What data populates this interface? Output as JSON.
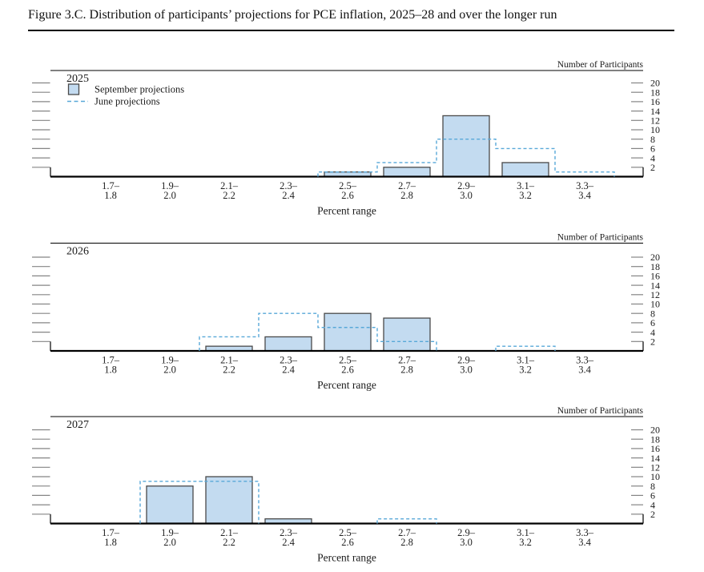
{
  "title": "Figure 3.C. Distribution of participants’ projections for PCE inflation, 2025–28 and over the longer run",
  "colors": {
    "bar_fill": "#c3dbf0",
    "bar_stroke": "#4a4a4a",
    "june": "#58a8d8",
    "axis": "#000000",
    "tick": "#858585",
    "text": "#1a1a1a"
  },
  "legend": {
    "september_label": "September projections",
    "june_label": "June projections"
  },
  "chart_data": [
    {
      "type": "bar",
      "title": "2025",
      "categories": [
        "1.7–1.8",
        "1.9–2.0",
        "2.1–2.2",
        "2.3–2.4",
        "2.5–2.6",
        "2.7–2.8",
        "2.9–3.0",
        "3.1–3.2",
        "3.3–3.4"
      ],
      "series": [
        {
          "name": "September projections",
          "style": "bar",
          "values": [
            0,
            0,
            0,
            0,
            1,
            2,
            13,
            3,
            0
          ]
        },
        {
          "name": "June projections",
          "style": "dashed-step",
          "values": [
            0,
            0,
            0,
            0,
            1,
            3,
            8,
            6,
            1
          ]
        }
      ],
      "xlabel": "Percent range",
      "ylabel": "Number of Participants",
      "ylim": [
        0,
        20
      ],
      "yticks": [
        2,
        4,
        6,
        8,
        10,
        12,
        14,
        16,
        18,
        20
      ],
      "legend_visible": true
    },
    {
      "type": "bar",
      "title": "2026",
      "categories": [
        "1.7–1.8",
        "1.9–2.0",
        "2.1–2.2",
        "2.3–2.4",
        "2.5–2.6",
        "2.7–2.8",
        "2.9–3.0",
        "3.1–3.2",
        "3.3–3.4"
      ],
      "series": [
        {
          "name": "September projections",
          "style": "bar",
          "values": [
            0,
            0,
            1,
            3,
            8,
            7,
            0,
            0,
            0
          ]
        },
        {
          "name": "June projections",
          "style": "dashed-step",
          "values": [
            0,
            0,
            3,
            8,
            5,
            2,
            0,
            1,
            0
          ]
        }
      ],
      "xlabel": "Percent range",
      "ylabel": "Number of Participants",
      "ylim": [
        0,
        20
      ],
      "yticks": [
        2,
        4,
        6,
        8,
        10,
        12,
        14,
        16,
        18,
        20
      ],
      "legend_visible": false
    },
    {
      "type": "bar",
      "title": "2027",
      "categories": [
        "1.7–1.8",
        "1.9–2.0",
        "2.1–2.2",
        "2.3–2.4",
        "2.5–2.6",
        "2.7–2.8",
        "2.9–3.0",
        "3.1–3.2",
        "3.3–3.4"
      ],
      "series": [
        {
          "name": "September projections",
          "style": "bar",
          "values": [
            0,
            8,
            10,
            1,
            0,
            0,
            0,
            0,
            0
          ]
        },
        {
          "name": "June projections",
          "style": "dashed-step",
          "values": [
            0,
            9,
            9,
            0,
            0,
            1,
            0,
            0,
            0
          ]
        }
      ],
      "xlabel": "Percent range",
      "ylabel": "Number of Participants",
      "ylim": [
        0,
        20
      ],
      "yticks": [
        2,
        4,
        6,
        8,
        10,
        12,
        14,
        16,
        18,
        20
      ],
      "legend_visible": false
    }
  ]
}
